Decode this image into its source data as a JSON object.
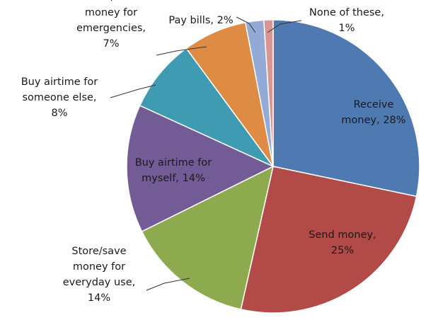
{
  "chart_data": {
    "type": "pie",
    "title": "",
    "start_angle_deg": 0,
    "direction": "clockwise",
    "slices": [
      {
        "label": "Receive money",
        "value": 28,
        "display": "28%",
        "color": "#4F79B1"
      },
      {
        "label": "Send money",
        "value": 25,
        "display": "25%",
        "color": "#B24A47"
      },
      {
        "label": "Store/save money for everyday use",
        "value": 14,
        "display": "14%",
        "color": "#8EAA4F"
      },
      {
        "label": "Buy airtime for myself",
        "value": 14,
        "display": "14%",
        "color": "#735B96"
      },
      {
        "label": "Buy airtime for someone else",
        "value": 8,
        "display": "8%",
        "color": "#3F9BB1"
      },
      {
        "label": "Store/save money for emergencies",
        "value": 7,
        "display": "7%",
        "color": "#DE8C43"
      },
      {
        "label": "Pay bills",
        "value": 2,
        "display": "2%",
        "color": "#93AAD6"
      },
      {
        "label": "None of these",
        "value": 1,
        "display": "1%",
        "color": "#D99591"
      }
    ],
    "legend": "none",
    "label_style": "category name and percentage"
  }
}
